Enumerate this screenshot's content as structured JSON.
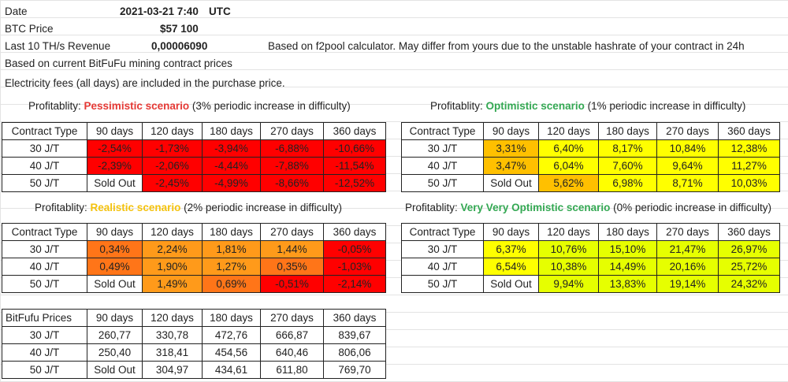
{
  "info": {
    "date_label": "Date",
    "date_value": "2021-03-21 7:40",
    "date_tz": "UTC",
    "btc_label": "BTC Price",
    "btc_value": "$57 100",
    "revenue_label": "Last 10 TH/s Revenue",
    "revenue_value": "0,00006090",
    "revenue_note": "Based on f2pool calculator. May differ from yours due to the unstable hashrate of your contract in 24h",
    "contract_note": "Based on current BitFuFu mining contract prices",
    "electricity_note": "Electricity fees (all days) are included in the purchase price."
  },
  "headers": [
    "Contract Type",
    "90 days",
    "120 days",
    "180 days",
    "270 days",
    "360 days"
  ],
  "rows": [
    "30 J/T",
    "40 J/T",
    "50 J/T"
  ],
  "tables": {
    "pessimistic": {
      "title_prefix": "Profitablity: ",
      "scenario": "Pessimistic scenario",
      "title_suffix": " (3% periodic increase in difficulty)",
      "cells": [
        [
          "-2,54%",
          "-1,73%",
          "-3,94%",
          "-6,88%",
          "-10,66%"
        ],
        [
          "-2,39%",
          "-2,06%",
          "-4,44%",
          "-7,88%",
          "-11,54%"
        ],
        [
          "Sold Out",
          "-2,45%",
          "-4,99%",
          "-8,66%",
          "-12,52%"
        ]
      ],
      "colors": [
        [
          "#ff0000",
          "#ff0000",
          "#ff0000",
          "#ff0000",
          "#ff0000"
        ],
        [
          "#ff0000",
          "#ff0000",
          "#ff0000",
          "#ff0000",
          "#ff0000"
        ],
        [
          "#ffffff",
          "#ff0000",
          "#ff0000",
          "#ff0000",
          "#ff0000"
        ]
      ]
    },
    "optimistic": {
      "title_prefix": "Profitablity: ",
      "scenario": "Optimistic scenario",
      "title_suffix": " (1% periodic increase in difficulty)",
      "cells": [
        [
          "3,31%",
          "6,40%",
          "8,17%",
          "10,84%",
          "12,38%"
        ],
        [
          "3,47%",
          "6,04%",
          "7,60%",
          "9,64%",
          "11,27%"
        ],
        [
          "Sold Out",
          "5,62%",
          "6,98%",
          "8,71%",
          "10,03%"
        ]
      ],
      "colors": [
        [
          "#ffc000",
          "#ffff00",
          "#ffff00",
          "#ffff00",
          "#ffff00"
        ],
        [
          "#ffc000",
          "#ffff00",
          "#ffff00",
          "#ffff00",
          "#ffff00"
        ],
        [
          "#ffffff",
          "#ffc000",
          "#ffff00",
          "#ffff00",
          "#ffff00"
        ]
      ]
    },
    "realistic": {
      "title_prefix": "Profitablity: ",
      "scenario": "Realistic scenario",
      "title_suffix": " (2% periodic increase in difficulty)",
      "cells": [
        [
          "0,34%",
          "2,24%",
          "1,81%",
          "1,44%",
          "-0,05%"
        ],
        [
          "0,49%",
          "1,90%",
          "1,27%",
          "0,35%",
          "-1,03%"
        ],
        [
          "Sold Out",
          "1,49%",
          "0,69%",
          "-0,51%",
          "-2,14%"
        ]
      ],
      "colors": [
        [
          "#ff7518",
          "#ff9a1a",
          "#ff9a1a",
          "#ff9a1a",
          "#ff0000"
        ],
        [
          "#ff7518",
          "#ff9a1a",
          "#ff9a1a",
          "#ff7518",
          "#ff0000"
        ],
        [
          "#ffffff",
          "#ff9a1a",
          "#ff7518",
          "#ff0000",
          "#ff0000"
        ]
      ]
    },
    "very_optimistic": {
      "title_prefix": "Profitablity: ",
      "scenario": "Very Very Optimistic scenario",
      "title_suffix": " (0% periodic increase in difficulty)",
      "cells": [
        [
          "6,37%",
          "10,76%",
          "15,10%",
          "21,47%",
          "26,97%"
        ],
        [
          "6,54%",
          "10,38%",
          "14,49%",
          "20,16%",
          "25,72%"
        ],
        [
          "Sold Out",
          "9,94%",
          "13,83%",
          "19,14%",
          "24,32%"
        ]
      ],
      "colors": [
        [
          "#ffff00",
          "#e6ff00",
          "#e6ff00",
          "#e6ff00",
          "#e6ff00"
        ],
        [
          "#ffff00",
          "#e6ff00",
          "#e6ff00",
          "#e6ff00",
          "#e6ff00"
        ],
        [
          "#ffffff",
          "#e6ff00",
          "#e6ff00",
          "#e6ff00",
          "#e6ff00"
        ]
      ]
    }
  },
  "prices": {
    "headers": [
      "BitFufu Prices",
      "90 days",
      "120 days",
      "180 days",
      "270 days",
      "360 days"
    ],
    "cells": [
      [
        "260,77",
        "330,78",
        "472,76",
        "666,87",
        "839,67"
      ],
      [
        "250,40",
        "318,41",
        "454,56",
        "640,46",
        "806,06"
      ],
      [
        "Sold Out",
        "304,97",
        "434,61",
        "611,80",
        "769,70"
      ]
    ]
  }
}
